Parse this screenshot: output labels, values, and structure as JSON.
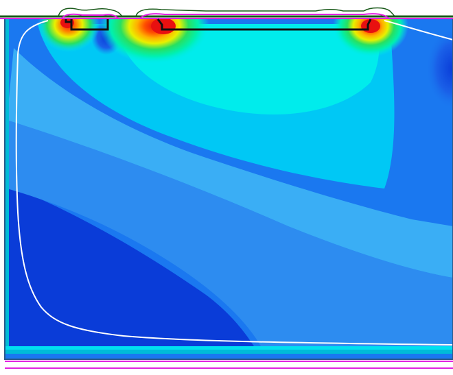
{
  "colors": {
    "background": "#ffffff",
    "device_outline": "#2a5a8a",
    "base_field": "#1a78f0",
    "deep_blue": "#0a3cd8",
    "mid_blue": "#2d8cf0",
    "light_blue": "#3aaef5",
    "sky_blue": "#00c8f5",
    "cyan": "#00ecec",
    "aqua_green": "#00f0b0",
    "green": "#28e060",
    "yellow": "#e8f000",
    "orange": "#ff9000",
    "red": "#e81010",
    "white_contour": "#ffffff",
    "top_surface_line": "#1a5a1a",
    "magenta_line": "#e020e0",
    "electrode_outline": "#111111",
    "bottom_stripe_1": "#00bcd8",
    "bottom_stripe_2": "#00e0f0",
    "bottom_stripe_3": "#1a78f0"
  },
  "icons": {
    "contact_left": "electrode-left-icon",
    "contact_right": "electrode-right-icon"
  }
}
